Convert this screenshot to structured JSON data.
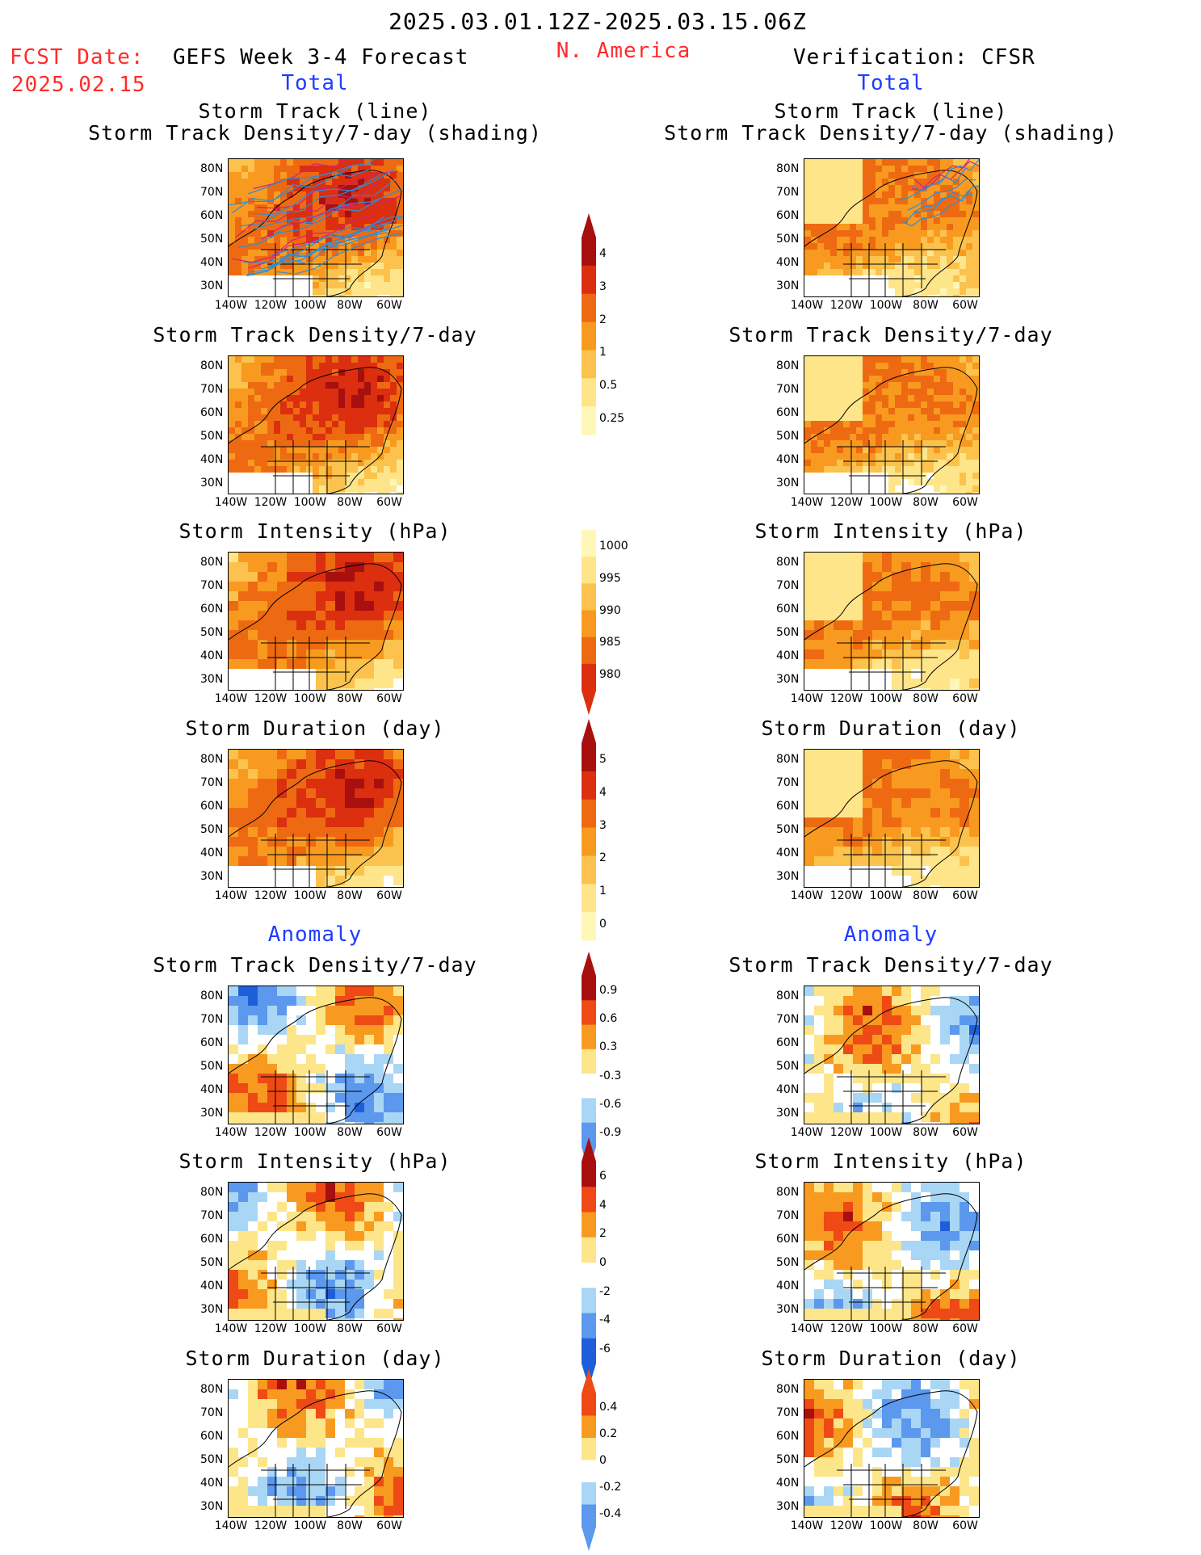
{
  "header": {
    "date_range": "2025.03.01.12Z-2025.03.15.06Z",
    "fcst_label": "FCST Date:",
    "fcst_date": "2025.02.15",
    "left_title": "GEFS Week 3-4 Forecast",
    "region": "N. America",
    "right_title": "Verification: CFSR",
    "total_left": "Total",
    "total_right": "Total",
    "anomaly_left": "Anomaly",
    "anomaly_right": "Anomaly"
  },
  "axes": {
    "lat_labels": [
      "80N",
      "70N",
      "60N",
      "50N",
      "40N",
      "30N"
    ],
    "lon_labels": [
      "140W",
      "120W",
      "100W",
      "80W",
      "60W"
    ]
  },
  "panels": {
    "stl1": "Storm Track (line)",
    "stl2": "Storm Track Density/7-day (shading)",
    "std": "Storm Track Density/7-day",
    "si": "Storm Intensity (hPa)",
    "sd": "Storm Duration (day)"
  },
  "colorbars": {
    "density": [
      "4",
      "3",
      "2",
      "1",
      "0.5",
      "0.25"
    ],
    "intensity": [
      "1000",
      "995",
      "990",
      "985",
      "980"
    ],
    "duration": [
      "5",
      "4",
      "3",
      "2",
      "1",
      "0"
    ],
    "density_anom": [
      "0.9",
      "0.6",
      "0.3",
      "-0.3",
      "-0.6",
      "-0.9"
    ],
    "intensity_anom": [
      "6",
      "4",
      "2",
      "0",
      "-2",
      "-4",
      "-6"
    ],
    "duration_anom": [
      "0.4",
      "0.2",
      "0",
      "-0.2",
      "-0.4"
    ]
  },
  "palettes": {
    "warm": [
      "#fff7b8",
      "#ffe58a",
      "#fbc24d",
      "#f89a1f",
      "#ee6a12",
      "#db2f10",
      "#a80f0f"
    ],
    "anom": [
      "#1e5fd9",
      "#5b98ee",
      "#a9d6f5",
      "#ffffff",
      "#fde58a",
      "#f89a1f",
      "#ef4a15",
      "#a80f0f"
    ]
  }
}
